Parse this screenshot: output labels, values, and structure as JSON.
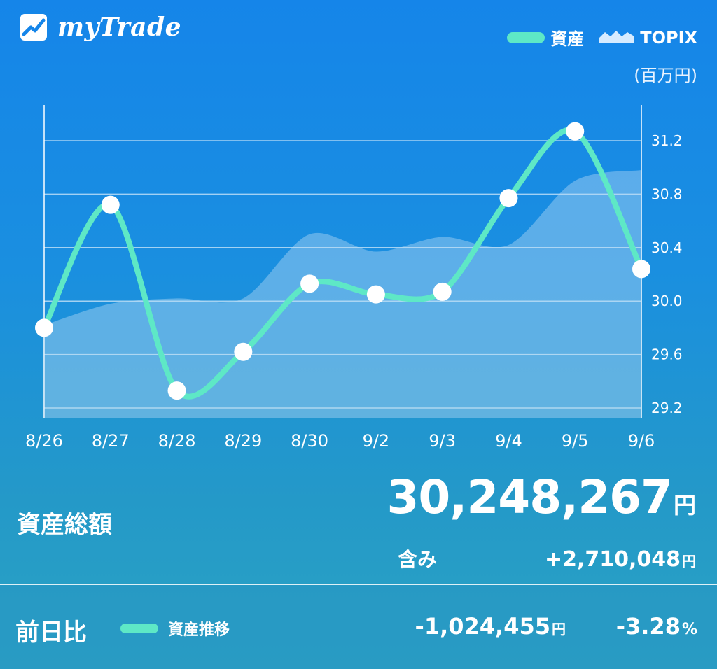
{
  "app": {
    "title": "myTrade"
  },
  "legend": {
    "assets_label": "資産",
    "topix_label": "TOPIX",
    "unit": "(百万円)"
  },
  "colors": {
    "background_top": "#1585e9",
    "background_bottom": "#2aa3c4",
    "asset_line": "#5ee8c6",
    "topix_area": "#b9dcf5",
    "point": "#ffffff"
  },
  "chart_data": {
    "type": "line",
    "categories": [
      "8/26",
      "8/27",
      "8/28",
      "8/29",
      "8/30",
      "9/2",
      "9/3",
      "9/4",
      "9/5",
      "9/6"
    ],
    "series": [
      {
        "name": "資産",
        "kind": "line",
        "values": [
          29.8,
          30.72,
          29.33,
          29.62,
          30.13,
          30.05,
          30.07,
          30.77,
          31.27,
          30.24
        ]
      },
      {
        "name": "TOPIX",
        "kind": "area",
        "values": [
          29.82,
          29.98,
          30.02,
          30.02,
          30.5,
          30.37,
          30.48,
          30.42,
          30.9,
          30.98
        ]
      }
    ],
    "y_ticks": [
      "29.2",
      "29.6",
      "30.0",
      "30.4",
      "30.8",
      "31.2"
    ],
    "ylim": [
      29.12,
      31.48
    ],
    "ylabel": "(百万円)",
    "legend_position": "top-right",
    "grid": true
  },
  "summary": {
    "total_label": "資産総額",
    "total_value": "30,248,267",
    "total_unit": "円",
    "included_label": "含み",
    "included_value": "+2,710,048",
    "included_unit": "円"
  },
  "footer": {
    "label": "前日比",
    "legend_label": "資産推移",
    "diff_amount": "-1,024,455",
    "diff_unit": "円",
    "diff_pct": "-3.28",
    "pct_unit": "%"
  }
}
